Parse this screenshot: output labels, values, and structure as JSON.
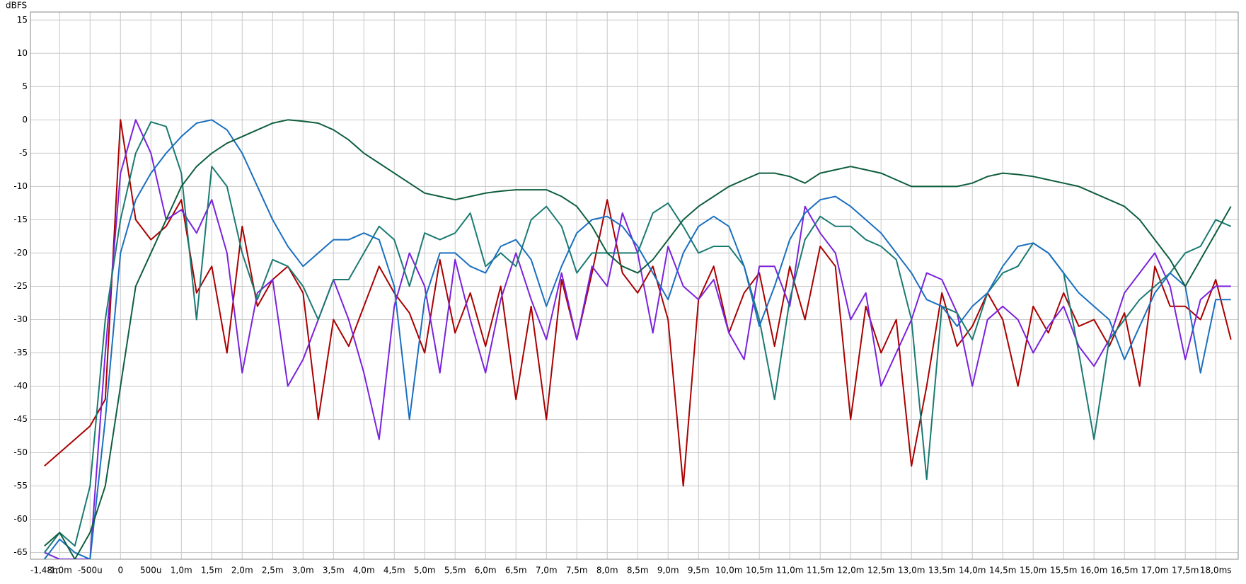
{
  "chart_data": {
    "type": "line",
    "y_label": "dBFS",
    "x": [
      -1.25,
      -1,
      -0.75,
      -0.5,
      -0.25,
      0,
      0.25,
      0.5,
      0.75,
      1,
      1.25,
      1.5,
      1.75,
      2,
      2.25,
      2.5,
      2.75,
      3,
      3.25,
      3.5,
      3.75,
      4,
      4.25,
      4.5,
      4.75,
      5,
      5.25,
      5.5,
      5.75,
      6,
      6.25,
      6.5,
      6.75,
      7,
      7.25,
      7.5,
      7.75,
      8,
      8.25,
      8.5,
      8.75,
      9,
      9.25,
      9.5,
      9.75,
      10,
      10.25,
      10.5,
      10.75,
      11,
      11.25,
      11.5,
      11.75,
      12,
      12.25,
      12.5,
      12.75,
      13,
      13.25,
      13.5,
      13.75,
      14,
      14.25,
      14.5,
      14.75,
      15,
      15.25,
      15.5,
      15.75,
      16,
      16.25,
      16.5,
      16.75,
      17,
      17.25,
      17.5,
      17.75,
      18,
      18.25
    ],
    "series": [
      {
        "color": "#aa0000",
        "values": [
          -52,
          -50,
          -48,
          -46,
          -42,
          0,
          -15,
          -18,
          -16,
          -12,
          -26,
          -22,
          -35,
          -16,
          -28,
          -24,
          -22,
          -26,
          -45,
          -30,
          -34,
          -28,
          -22,
          -26,
          -29,
          -35,
          -21,
          -32,
          -26,
          -34,
          -25,
          -42,
          -28,
          -45,
          -24,
          -33,
          -23,
          -12,
          -23,
          -26,
          -22,
          -30,
          -55,
          -27,
          -22,
          -32,
          -26,
          -23,
          -34,
          -22,
          -30,
          -19,
          -22,
          -45,
          -28,
          -35,
          -30,
          -52,
          -40,
          -26,
          -34,
          -31,
          -26,
          -30,
          -40,
          -28,
          -32,
          -26,
          -31,
          -30,
          -34,
          -29,
          -40,
          -22,
          -28,
          -28,
          -30,
          -24,
          -33
        ]
      },
      {
        "color": "#7a22dd",
        "values": [
          -65,
          -66,
          -66,
          -66,
          -35,
          -8,
          0,
          -5,
          -15,
          -13.5,
          -17,
          -12,
          -20,
          -38,
          -26,
          -24,
          -40,
          -36,
          -30,
          -24,
          -30,
          -38,
          -48,
          -28,
          -20,
          -25,
          -38,
          -21,
          -30,
          -38,
          -27,
          -20,
          -27,
          -33,
          -23,
          -33,
          -22,
          -25,
          -14,
          -20,
          -32,
          -19,
          -25,
          -27,
          -24,
          -32,
          -36,
          -22,
          -22,
          -28,
          -13,
          -17,
          -20,
          -30,
          -26,
          -40,
          -35,
          -30,
          -23,
          -24,
          -29,
          -40,
          -30,
          -28,
          -30,
          -35,
          -31,
          -28,
          -34,
          -37,
          -33,
          -26,
          -23,
          -20,
          -25,
          -36,
          -27,
          -25,
          -25
        ]
      },
      {
        "color": "#1a7a72",
        "values": [
          -65,
          -62,
          -64,
          -55,
          -30,
          -15,
          -5,
          -0.3,
          -1,
          -8,
          -30,
          -7,
          -10,
          -20,
          -27,
          -21,
          -22,
          -25,
          -30,
          -24,
          -24,
          -20,
          -16,
          -18,
          -25,
          -17,
          -18,
          -17,
          -14,
          -22,
          -20,
          -22,
          -15,
          -13,
          -16,
          -23,
          -20,
          -20,
          -20,
          -20,
          -14,
          -12.5,
          -16,
          -20,
          -19,
          -19,
          -22,
          -30,
          -42,
          -27,
          -18,
          -14.5,
          -16,
          -16,
          -18,
          -19,
          -21,
          -30,
          -54,
          -28,
          -29,
          -33,
          -26,
          -23,
          -22,
          -18.5,
          -20,
          -23,
          -35,
          -48,
          -33,
          -30,
          -27,
          -25,
          -23,
          -20,
          -19,
          -15,
          -16
        ]
      },
      {
        "color": "#1a6fc0",
        "values": [
          -66,
          -63,
          -65,
          -66,
          -45,
          -20,
          -12,
          -8,
          -5,
          -2.5,
          -0.5,
          0,
          -1.5,
          -5,
          -10,
          -15,
          -19,
          -22,
          -20,
          -18,
          -18,
          -17,
          -18,
          -25,
          -45,
          -27,
          -20,
          -20,
          -22,
          -23,
          -19,
          -18,
          -21,
          -28,
          -22,
          -17,
          -15,
          -14.5,
          -16,
          -19,
          -23,
          -27,
          -20,
          -16,
          -14.5,
          -16,
          -22,
          -31,
          -25,
          -18,
          -14,
          -12,
          -11.5,
          -13,
          -15,
          -17,
          -20,
          -23,
          -27,
          -28,
          -31,
          -28,
          -26,
          -22,
          -19,
          -18.5,
          -20,
          -23,
          -26,
          -28,
          -30,
          -36,
          -31,
          -26,
          -23,
          -25,
          -38,
          -27,
          -27
        ]
      },
      {
        "color": "#0e5e3e",
        "values": [
          -64,
          -62,
          -66,
          -62,
          -55,
          -40,
          -25,
          -20,
          -15,
          -10,
          -7,
          -5,
          -3.5,
          -2.5,
          -1.5,
          -0.5,
          0,
          -0.2,
          -0.5,
          -1.5,
          -3,
          -5,
          -6.5,
          -8,
          -9.5,
          -11,
          -11.5,
          -12,
          -11.5,
          -11,
          -10.7,
          -10.5,
          -10.5,
          -10.5,
          -11.5,
          -13,
          -16,
          -20,
          -22,
          -23,
          -21,
          -18,
          -15,
          -13,
          -11.5,
          -10,
          -9,
          -8,
          -8,
          -8.5,
          -9.5,
          -8,
          -7.5,
          -7,
          -7.5,
          -8,
          -9,
          -10,
          -10,
          -10,
          -10,
          -9.5,
          -8.5,
          -8,
          -8.2,
          -8.5,
          -9,
          -9.5,
          -10,
          -11,
          -12,
          -13,
          -15,
          -18,
          -21,
          -25,
          -21,
          -17,
          -13
        ]
      }
    ],
    "xlim": [
      -1.48,
      18.37
    ],
    "ylim": [
      -66,
      16.2
    ],
    "xticks": [
      {
        "value": -1.48,
        "label": "-1,48m"
      },
      {
        "value": -1,
        "label": "-1,0m"
      },
      {
        "value": -0.5,
        "label": "-500u"
      },
      0,
      {
        "value": 0.5,
        "label": "500u"
      },
      {
        "value": 1,
        "label": "1,0m"
      },
      {
        "value": 1.5,
        "label": "1,5m"
      },
      {
        "value": 2,
        "label": "2,0m"
      },
      {
        "value": 2.5,
        "label": "2,5m"
      },
      {
        "value": 3,
        "label": "3,0m"
      },
      {
        "value": 3.5,
        "label": "3,5m"
      },
      {
        "value": 4,
        "label": "4,0m"
      },
      {
        "value": 4.5,
        "label": "4,5m"
      },
      {
        "value": 5,
        "label": "5,0m"
      },
      {
        "value": 5.5,
        "label": "5,5m"
      },
      {
        "value": 6,
        "label": "6,0m"
      },
      {
        "value": 6.5,
        "label": "6,5m"
      },
      {
        "value": 7,
        "label": "7,0m"
      },
      {
        "value": 7.5,
        "label": "7,5m"
      },
      {
        "value": 8,
        "label": "8,0m"
      },
      {
        "value": 8.5,
        "label": "8,5m"
      },
      {
        "value": 9,
        "label": "9,0m"
      },
      {
        "value": 9.5,
        "label": "9,5m"
      },
      {
        "value": 10,
        "label": "10,0m"
      },
      {
        "value": 10.5,
        "label": "10,5m"
      },
      {
        "value": 11,
        "label": "11,0m"
      },
      {
        "value": 11.5,
        "label": "11,5m"
      },
      {
        "value": 12,
        "label": "12,0m"
      },
      {
        "value": 12.5,
        "label": "12,5m"
      },
      {
        "value": 13,
        "label": "13,0m"
      },
      {
        "value": 13.5,
        "label": "13,5m"
      },
      {
        "value": 14,
        "label": "14,0m"
      },
      {
        "value": 14.5,
        "label": "14,5m"
      },
      {
        "value": 15,
        "label": "15,0m"
      },
      {
        "value": 15.5,
        "label": "15,5m"
      },
      {
        "value": 16,
        "label": "16,0m"
      },
      {
        "value": 16.5,
        "label": "16,5m"
      },
      {
        "value": 17,
        "label": "17,0m"
      },
      {
        "value": 17.5,
        "label": "17,5m"
      },
      {
        "value": 18,
        "label": "18,0ms"
      }
    ],
    "yticks": [
      15,
      10,
      5,
      0,
      -5,
      -10,
      -15,
      -20,
      -25,
      -30,
      -35,
      -40,
      -45,
      -50,
      -55,
      -60,
      -65
    ],
    "grid": true
  }
}
